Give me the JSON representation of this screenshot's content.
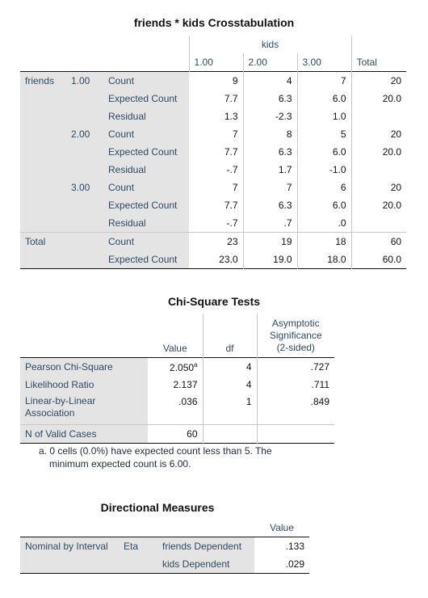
{
  "crosstab": {
    "title": "friends * kids Crosstabulation",
    "col_var": "kids",
    "col_levels": [
      "1.00",
      "2.00",
      "3.00"
    ],
    "total_label": "Total",
    "row_var": "friends",
    "groups": [
      {
        "level": "1.00",
        "rows": [
          {
            "stat": "Count",
            "vals": [
              "9",
              "4",
              "7"
            ],
            "total": "20"
          },
          {
            "stat": "Expected Count",
            "vals": [
              "7.7",
              "6.3",
              "6.0"
            ],
            "total": "20.0"
          },
          {
            "stat": "Residual",
            "vals": [
              "1.3",
              "-2.3",
              "1.0"
            ],
            "total": ""
          }
        ]
      },
      {
        "level": "2.00",
        "rows": [
          {
            "stat": "Count",
            "vals": [
              "7",
              "8",
              "5"
            ],
            "total": "20"
          },
          {
            "stat": "Expected Count",
            "vals": [
              "7.7",
              "6.3",
              "6.0"
            ],
            "total": "20.0"
          },
          {
            "stat": "Residual",
            "vals": [
              "-.7",
              "1.7",
              "-1.0"
            ],
            "total": ""
          }
        ]
      },
      {
        "level": "3.00",
        "rows": [
          {
            "stat": "Count",
            "vals": [
              "7",
              "7",
              "6"
            ],
            "total": "20"
          },
          {
            "stat": "Expected Count",
            "vals": [
              "7.7",
              "6.3",
              "6.0"
            ],
            "total": "20.0"
          },
          {
            "stat": "Residual",
            "vals": [
              "-.7",
              ".7",
              ".0"
            ],
            "total": ""
          }
        ]
      }
    ],
    "total_rows": [
      {
        "stat": "Count",
        "vals": [
          "23",
          "19",
          "18"
        ],
        "total": "60"
      },
      {
        "stat": "Expected Count",
        "vals": [
          "23.0",
          "19.0",
          "18.0"
        ],
        "total": "60.0"
      }
    ]
  },
  "chisq": {
    "title": "Chi-Square Tests",
    "col_value": "Value",
    "col_df": "df",
    "col_sig_1": "Asymptotic",
    "col_sig_2": "Significance",
    "col_sig_3": "(2-sided)",
    "rows": [
      {
        "label": "Pearson Chi-Square",
        "value": "2.050",
        "sup": "a",
        "df": "4",
        "sig": ".727"
      },
      {
        "label": "Likelihood Ratio",
        "value": "2.137",
        "sup": "",
        "df": "4",
        "sig": ".711"
      },
      {
        "label_1": "Linear-by-Linear",
        "label_2": "Association",
        "value": ".036",
        "sup": "",
        "df": "1",
        "sig": ".849"
      },
      {
        "label": "N of Valid Cases",
        "value": "60",
        "sup": "",
        "df": "",
        "sig": ""
      }
    ],
    "footnote_1": "a. 0 cells (0.0%) have expected count less than 5. The",
    "footnote_2": "minimum expected count is 6.00."
  },
  "directional": {
    "title": "Directional Measures",
    "col_value": "Value",
    "row_label": "Nominal by Interval",
    "measure": "Eta",
    "rows": [
      {
        "label": "friends Dependent",
        "value": ".133"
      },
      {
        "label": "kids Dependent",
        "value": ".029"
      }
    ]
  }
}
